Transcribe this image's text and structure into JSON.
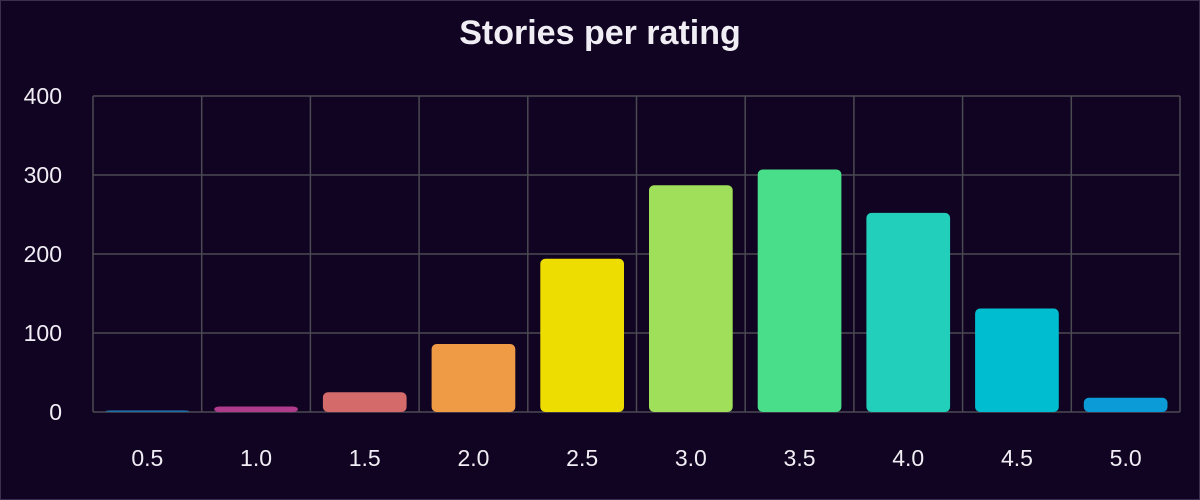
{
  "chart_data": {
    "type": "bar",
    "title": "Stories per rating",
    "xlabel": "",
    "ylabel": "",
    "categories": [
      "0.5",
      "1.0",
      "1.5",
      "2.0",
      "2.5",
      "3.0",
      "3.5",
      "4.0",
      "4.5",
      "5.0"
    ],
    "values": [
      2,
      7,
      25,
      86,
      194,
      287,
      307,
      252,
      131,
      18
    ],
    "ylim": [
      0,
      400
    ],
    "yticks": [
      0,
      100,
      200,
      300,
      400
    ],
    "grid": true,
    "legend": "none",
    "colors": [
      "#1d6fa5",
      "#b03a8c",
      "#d46a6a",
      "#ef9a45",
      "#eedd00",
      "#9fdf5a",
      "#48de8a",
      "#22cfba",
      "#00bdd0",
      "#0b9bd6"
    ],
    "grid_color": "#4a4a52",
    "text_color": "#f0eef4",
    "background": "#110322"
  }
}
